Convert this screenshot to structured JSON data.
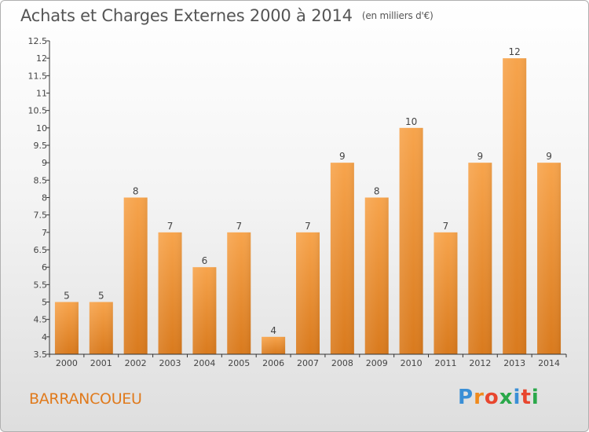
{
  "header": {
    "title": "Achats et Charges Externes 2000 à 2014",
    "unit": "(en milliers d'€)"
  },
  "footer": {
    "commune": "BARRANCOUEU",
    "logo_letters": [
      "P",
      "r",
      "o",
      "x",
      "i",
      "t",
      "i"
    ],
    "logo_colors": [
      "#3a8fd6",
      "#f08a1c",
      "#e8462e",
      "#2aa84a",
      "#3a8fd6",
      "#e8462e",
      "#2aa84a"
    ]
  },
  "colors": {
    "bar_top": "#f7a44c",
    "bar_bottom": "#d97a1d",
    "axis": "#333333",
    "commune_text": "#e07a1c"
  },
  "chart_data": {
    "type": "bar",
    "title": "Achats et Charges Externes 2000 à 2014",
    "categories": [
      "2000",
      "2001",
      "2002",
      "2003",
      "2004",
      "2005",
      "2006",
      "2007",
      "2008",
      "2009",
      "2010",
      "2011",
      "2012",
      "2013",
      "2014"
    ],
    "values": [
      5,
      5,
      8,
      7,
      6,
      7,
      4,
      7,
      9,
      8,
      10,
      7,
      9,
      12,
      9
    ],
    "data_labels": [
      "5",
      "5",
      "8",
      "7",
      "6",
      "7",
      "4",
      "7",
      "9",
      "8",
      "10",
      "7",
      "9",
      "12",
      "9"
    ],
    "ylim": [
      3.5,
      12.5
    ],
    "yticks": [
      3.5,
      4,
      4.5,
      5,
      5.5,
      6,
      6.5,
      7,
      7.5,
      8,
      8.5,
      9,
      9.5,
      10,
      10.5,
      11,
      11.5,
      12,
      12.5
    ],
    "ytick_labels": [
      "3.5",
      "4",
      "4.5",
      "5",
      "5.5",
      "6",
      "6.5",
      "7",
      "7.5",
      "8",
      "8.5",
      "9",
      "9.5",
      "10",
      "10.5",
      "11",
      "11.5",
      "12",
      "12.5"
    ],
    "grid": false,
    "legend": "none"
  }
}
